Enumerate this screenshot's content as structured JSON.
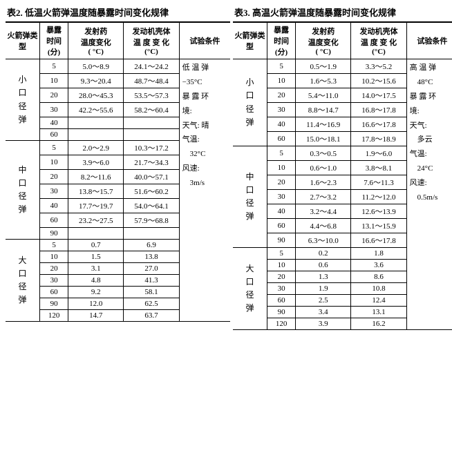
{
  "tables": [
    {
      "caption": "表2. 低温火箭弹温度随暴露时间变化规律",
      "headers": {
        "type": "火箭弹类 型",
        "time": [
          "暴露",
          "时间",
          "(分)"
        ],
        "drug": [
          "发射药",
          "温度变化",
          "( °C)"
        ],
        "shell": [
          "发动机壳体",
          "温 度 变 化",
          "(°C)"
        ],
        "cond": "试验条件"
      },
      "groups": [
        {
          "label": [
            "小",
            "口",
            "径",
            "弹"
          ],
          "rows": [
            {
              "t": "5",
              "d": "5.0～8.9",
              "s": "24.1～24.2"
            },
            {
              "t": "10",
              "d": "9.3～20.4",
              "s": "48.7～48.4"
            },
            {
              "t": "20",
              "d": "28.0～45.3",
              "s": "53.5～57.3"
            },
            {
              "t": "30",
              "d": "42.2～55.6",
              "s": "58.2～60.4"
            },
            {
              "t": "40",
              "d": "",
              "s": ""
            },
            {
              "t": "60",
              "d": "",
              "s": ""
            }
          ]
        },
        {
          "label": [
            "中",
            "口",
            "径",
            "弹"
          ],
          "rows": [
            {
              "t": "5",
              "d": "2.0～2.9",
              "s": "10.3～17.2"
            },
            {
              "t": "10",
              "d": "3.9～6.0",
              "s": "21.7～34.3"
            },
            {
              "t": "20",
              "d": "8.2～11.6",
              "s": "40.0～57.1"
            },
            {
              "t": "30",
              "d": "13.8～15.7",
              "s": "51.6～60.2"
            },
            {
              "t": "40",
              "d": "17.7～19.7",
              "s": "54.0～64.1"
            },
            {
              "t": "60",
              "d": "23.2～27.5",
              "s": "57.9～68.8"
            },
            {
              "t": "90",
              "d": "",
              "s": ""
            }
          ]
        },
        {
          "label": [
            "大",
            "口",
            "径",
            "弹"
          ],
          "rows": [
            {
              "t": "5",
              "d": "0.7",
              "s": "6.9"
            },
            {
              "t": "10",
              "d": "1.5",
              "s": "13.8"
            },
            {
              "t": "20",
              "d": "3.1",
              "s": "27.0"
            },
            {
              "t": "30",
              "d": "4.8",
              "s": "41.3"
            },
            {
              "t": "60",
              "d": "9.2",
              "s": "58.1"
            },
            {
              "t": "90",
              "d": "12.0",
              "s": "62.5"
            },
            {
              "t": "120",
              "d": "14.7",
              "s": "63.7"
            }
          ]
        }
      ],
      "conditions": [
        "低 温 弹",
        "−35°C",
        "暴 露 环",
        "境:",
        "天气: 晴",
        "气温:",
        "　32°C",
        "风速:",
        "　3m/s"
      ]
    },
    {
      "caption": "表3. 高温火箭弹温度随暴露时间变化规律",
      "headers": {
        "type": "火箭弹类型",
        "time": [
          "暴露",
          "时间",
          "(分)"
        ],
        "drug": [
          "发射药",
          "温度变化",
          "( °C)"
        ],
        "shell": [
          "发动机壳体",
          "温 度 变 化",
          "(°C)"
        ],
        "cond": "试验条件"
      },
      "groups": [
        {
          "label": [
            "小",
            "口",
            "径",
            "弹"
          ],
          "rows": [
            {
              "t": "5",
              "d": "0.5～1.9",
              "s": "3.3～5.2"
            },
            {
              "t": "10",
              "d": "1.6～5.3",
              "s": "10.2～15.6"
            },
            {
              "t": "20",
              "d": "5.4～11.0",
              "s": "14.0～17.5"
            },
            {
              "t": "30",
              "d": "8.8～14.7",
              "s": "16.8～17.8"
            },
            {
              "t": "40",
              "d": "11.4～16.9",
              "s": "16.6～17.8"
            },
            {
              "t": "60",
              "d": "15.0～18.1",
              "s": "17.8～18.9"
            }
          ]
        },
        {
          "label": [
            "中",
            "口",
            "径",
            "弹"
          ],
          "rows": [
            {
              "t": "5",
              "d": "0.3～0.5",
              "s": "1.9～6.0"
            },
            {
              "t": "10",
              "d": "0.6～1.0",
              "s": "3.8～8.1"
            },
            {
              "t": "20",
              "d": "1.6～2.3",
              "s": "7.6～11.3"
            },
            {
              "t": "30",
              "d": "2.7～3.2",
              "s": "11.2～12.0"
            },
            {
              "t": "40",
              "d": "3.2～4.4",
              "s": "12.6～13.9"
            },
            {
              "t": "60",
              "d": "4.4～6.8",
              "s": "13.1～15.9"
            },
            {
              "t": "90",
              "d": "6.3～10.0",
              "s": "16.6～17.8"
            }
          ]
        },
        {
          "label": [
            "大",
            "口",
            "径",
            "弹"
          ],
          "rows": [
            {
              "t": "5",
              "d": "0.2",
              "s": "1.8"
            },
            {
              "t": "10",
              "d": "0.6",
              "s": "3.6"
            },
            {
              "t": "20",
              "d": "1.3",
              "s": "8.6"
            },
            {
              "t": "30",
              "d": "1.9",
              "s": "10.8"
            },
            {
              "t": "60",
              "d": "2.5",
              "s": "12.4"
            },
            {
              "t": "90",
              "d": "3.4",
              "s": "13.1"
            },
            {
              "t": "120",
              "d": "3.9",
              "s": "16.2"
            }
          ]
        }
      ],
      "conditions": [
        "高 温 弹",
        "　48°C",
        "暴 露 环",
        "境:",
        "天气:",
        "　多云",
        "气温:",
        "　24°C",
        "风速:",
        "　0.5m/s"
      ]
    }
  ]
}
